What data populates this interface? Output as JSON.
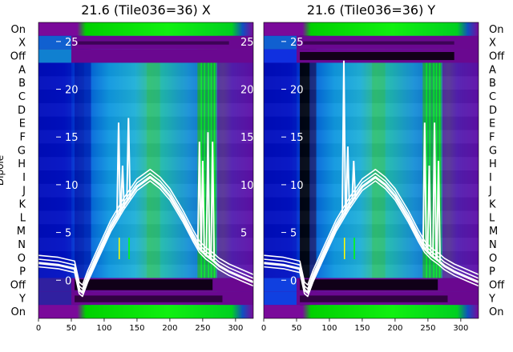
{
  "chart_data": [
    {
      "type": "heatmap",
      "title": "21.6 (Tile036=36) X",
      "ylabel": "Dipole",
      "row_labels": [
        "On",
        "X",
        "Off",
        "A",
        "B",
        "C",
        "D",
        "E",
        "F",
        "G",
        "H",
        "I",
        "J",
        "K",
        "L",
        "M",
        "N",
        "O",
        "P",
        "Off",
        "Y",
        "On"
      ],
      "x_ticks": [
        0,
        50,
        100,
        150,
        200,
        250,
        300
      ],
      "xlim": [
        0,
        327
      ],
      "overlay_y_ticks": [
        0,
        5,
        10,
        15,
        20,
        25
      ],
      "overlay_y_ticks_right": [
        5,
        10,
        15,
        20,
        25
      ],
      "overlay_ylim": [
        -4,
        27
      ],
      "bandpass_curve": {
        "x": [
          0,
          30,
          55,
          62,
          67,
          75,
          90,
          110,
          130,
          150,
          170,
          185,
          200,
          220,
          235,
          245,
          255,
          265,
          275,
          290,
          310,
          327
        ],
        "y": [
          1.8,
          1.6,
          1.2,
          -1.0,
          -1.3,
          0.2,
          2.5,
          5.5,
          7.8,
          9.8,
          10.8,
          10.0,
          8.8,
          6.5,
          4.5,
          3.3,
          2.6,
          2.1,
          1.5,
          0.9,
          0.3,
          -0.2
        ]
      },
      "spikes": [
        {
          "x": 122,
          "y": 16.5
        },
        {
          "x": 128,
          "y": 12.0
        },
        {
          "x": 137,
          "y": 17.0
        },
        {
          "x": 245,
          "y": 14.5
        },
        {
          "x": 250,
          "y": 12.5
        },
        {
          "x": 258,
          "y": 15.5
        },
        {
          "x": 265,
          "y": 14.5
        }
      ],
      "colormap": "nipy_spectral"
    },
    {
      "type": "heatmap",
      "title": "21.6 (Tile036=36) Y",
      "ylabel": "",
      "row_labels": [
        "On",
        "X",
        "Off",
        "A",
        "B",
        "C",
        "D",
        "E",
        "F",
        "G",
        "H",
        "I",
        "J",
        "K",
        "L",
        "M",
        "N",
        "O",
        "P",
        "Off",
        "Y",
        "On"
      ],
      "x_ticks": [
        0,
        50,
        100,
        150,
        200,
        250,
        300
      ],
      "xlim": [
        0,
        327
      ],
      "overlay_y_ticks": [
        0,
        5,
        10,
        15,
        20,
        25
      ],
      "overlay_ylim": [
        -4,
        27
      ],
      "bandpass_curve": {
        "x": [
          0,
          30,
          55,
          62,
          67,
          75,
          90,
          110,
          130,
          150,
          170,
          185,
          200,
          220,
          235,
          245,
          255,
          265,
          275,
          290,
          310,
          327
        ],
        "y": [
          1.8,
          1.6,
          1.2,
          -1.0,
          -1.3,
          0.2,
          2.5,
          5.5,
          7.8,
          9.8,
          10.8,
          10.0,
          8.8,
          6.5,
          4.5,
          3.3,
          2.6,
          2.1,
          1.5,
          0.9,
          0.3,
          -0.2
        ]
      },
      "spikes": [
        {
          "x": 122,
          "y": 23.0
        },
        {
          "x": 128,
          "y": 14.0
        },
        {
          "x": 137,
          "y": 12.5
        },
        {
          "x": 245,
          "y": 16.5
        },
        {
          "x": 252,
          "y": 12.0
        },
        {
          "x": 260,
          "y": 16.5
        },
        {
          "x": 266,
          "y": 12.5
        }
      ],
      "colormap": "nipy_spectral"
    }
  ],
  "colors": {
    "curve": "#ffffff",
    "overlay_tick_text": "#ffffff",
    "band_green": "#00e000",
    "band_purple": "#7a0a9a",
    "band_dark": "#1a0020",
    "band_blue": "#0010c8",
    "band_cyan": "#20a8e0"
  }
}
